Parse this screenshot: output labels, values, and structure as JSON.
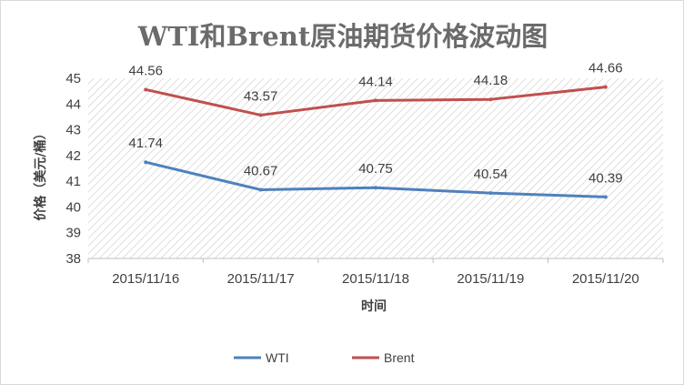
{
  "chart_data": {
    "type": "line",
    "title": "WTI和Brent原油期货价格波动图",
    "xlabel": "时间",
    "ylabel": "价格（美元/桶）",
    "categories": [
      "2015/11/16",
      "2015/11/17",
      "2015/11/18",
      "2015/11/19",
      "2015/11/20"
    ],
    "ylim": [
      38,
      45
    ],
    "yticks": [
      38,
      39,
      40,
      41,
      42,
      43,
      44,
      45
    ],
    "grid": false,
    "plot_background": "hatched",
    "legend_position": "bottom",
    "series": [
      {
        "name": "WTI",
        "color": "#4f81bd",
        "values": [
          41.74,
          40.67,
          40.75,
          40.54,
          40.39
        ],
        "labels": [
          "41.74",
          "40.67",
          "40.75",
          "40.54",
          "40.39"
        ]
      },
      {
        "name": "Brent",
        "color": "#c0504d",
        "values": [
          44.56,
          43.57,
          44.14,
          44.18,
          44.66
        ],
        "labels": [
          "44.56",
          "43.57",
          "44.14",
          "44.18",
          "44.66"
        ]
      }
    ]
  }
}
